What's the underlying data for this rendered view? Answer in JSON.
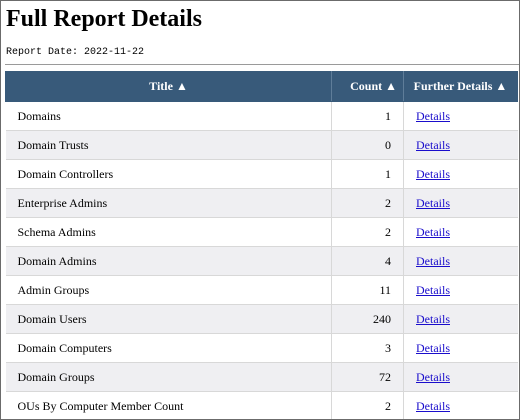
{
  "page": {
    "title": "Full Report Details",
    "report_date": "Report Date: 2022-11-22"
  },
  "table": {
    "headers": {
      "title": "Title ▲",
      "count": "Count ▲",
      "details": "Further Details ▲"
    },
    "rows": [
      {
        "title": "Domains",
        "count": "1",
        "details": "Details"
      },
      {
        "title": "Domain Trusts",
        "count": "0",
        "details": "Details"
      },
      {
        "title": "Domain Controllers",
        "count": "1",
        "details": "Details"
      },
      {
        "title": "Enterprise Admins",
        "count": "2",
        "details": "Details"
      },
      {
        "title": "Schema Admins",
        "count": "2",
        "details": "Details"
      },
      {
        "title": "Domain Admins",
        "count": "4",
        "details": "Details"
      },
      {
        "title": "Admin Groups",
        "count": "11",
        "details": "Details"
      },
      {
        "title": "Domain Users",
        "count": "240",
        "details": "Details"
      },
      {
        "title": "Domain Computers",
        "count": "3",
        "details": "Details"
      },
      {
        "title": "Domain Groups",
        "count": "72",
        "details": "Details"
      },
      {
        "title": "OUs By Computer Member Count",
        "count": "2",
        "details": "Details"
      }
    ]
  },
  "colors": {
    "header_background": "#385a7a",
    "header_text": "#ffffff",
    "row_alt_background": "#efeff2",
    "link": "#1a0dcc"
  }
}
